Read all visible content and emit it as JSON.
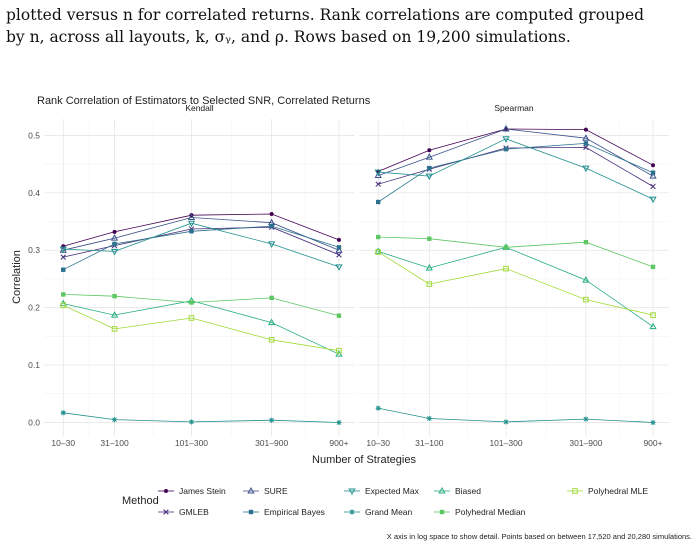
{
  "caption": {
    "line1": "plotted versus n for correlated returns. Rank correlations are computed grouped",
    "line2": "by n, across all layouts, k, σᵧ, and ρ. Rows based on 19,200 simulations."
  },
  "chart_data": {
    "type": "line",
    "title": "Rank Correlation of Estimators to Selected SNR, Correlated Returns",
    "xlabel": "Number of Strategies",
    "ylabel": "Correlation",
    "categories": [
      "10–30",
      "31–100",
      "101–300",
      "301–900",
      "900+"
    ],
    "x_positions": [
      0,
      0.8,
      2.0,
      3.25,
      4.3
    ],
    "ylim": [
      -0.02,
      0.525
    ],
    "yticks": [
      0.0,
      0.1,
      0.2,
      0.3,
      0.4,
      0.5
    ],
    "ytick_labels": [
      "0.0",
      "0.1",
      "0.2",
      "0.3",
      "0.4",
      "0.5"
    ],
    "legend_title": "Method",
    "legend_position": "bottom",
    "note": "X axis in log space to show detail. Points based on between 17,520 and 20,280 simulations.",
    "panels": [
      {
        "name": "Kendall",
        "series": [
          {
            "name": "James Stein",
            "color": "#440154",
            "marker": "dot",
            "values": [
              0.307,
              0.332,
              0.361,
              0.363,
              0.318
            ]
          },
          {
            "name": "GMLEB",
            "color": "#472d7b",
            "marker": "x",
            "values": [
              0.288,
              0.308,
              0.337,
              0.34,
              0.292
            ]
          },
          {
            "name": "SURE",
            "color": "#3b528b",
            "marker": "tri",
            "values": [
              0.3,
              0.321,
              0.357,
              0.348,
              0.3
            ]
          },
          {
            "name": "Empirical Bayes",
            "color": "#2c728e",
            "marker": "sq",
            "values": [
              0.266,
              0.311,
              0.333,
              0.342,
              0.305
            ]
          },
          {
            "name": "Expected Max",
            "color": "#21908d",
            "marker": "vtri",
            "values": [
              0.302,
              0.298,
              0.347,
              0.311,
              0.271
            ]
          },
          {
            "name": "Biased",
            "color": "#27ad81",
            "marker": "tri",
            "values": [
              0.207,
              0.187,
              0.212,
              0.174,
              0.119
            ]
          },
          {
            "name": "Grand Mean",
            "color": "#21908d",
            "marker": "star",
            "values": [
              0.017,
              0.005,
              0.001,
              0.004,
              0.0
            ]
          },
          {
            "name": "Polyhedral Median",
            "color": "#5dc863",
            "marker": "sq",
            "values": [
              0.223,
              0.22,
              0.209,
              0.217,
              0.186
            ]
          },
          {
            "name": "Polyhedral MLE",
            "color": "#a0da39",
            "marker": "sqo",
            "values": [
              0.204,
              0.163,
              0.182,
              0.144,
              0.125
            ]
          }
        ]
      },
      {
        "name": "Spearman",
        "series": [
          {
            "name": "James Stein",
            "color": "#440154",
            "marker": "dot",
            "values": [
              0.437,
              0.474,
              0.511,
              0.51,
              0.448
            ]
          },
          {
            "name": "GMLEB",
            "color": "#472d7b",
            "marker": "x",
            "values": [
              0.415,
              0.441,
              0.478,
              0.479,
              0.411
            ]
          },
          {
            "name": "SURE",
            "color": "#3b528b",
            "marker": "tri",
            "values": [
              0.43,
              0.462,
              0.511,
              0.495,
              0.429
            ]
          },
          {
            "name": "Empirical Bayes",
            "color": "#2c728e",
            "marker": "sq",
            "values": [
              0.384,
              0.443,
              0.476,
              0.486,
              0.435
            ]
          },
          {
            "name": "Expected Max",
            "color": "#21908d",
            "marker": "vtri",
            "values": [
              0.436,
              0.429,
              0.494,
              0.443,
              0.389
            ]
          },
          {
            "name": "Biased",
            "color": "#27ad81",
            "marker": "tri",
            "values": [
              0.298,
              0.269,
              0.305,
              0.248,
              0.167
            ]
          },
          {
            "name": "Grand Mean",
            "color": "#21908d",
            "marker": "star",
            "values": [
              0.025,
              0.007,
              0.001,
              0.006,
              0.0
            ]
          },
          {
            "name": "Polyhedral Median",
            "color": "#5dc863",
            "marker": "sq",
            "values": [
              0.323,
              0.32,
              0.305,
              0.314,
              0.271
            ]
          },
          {
            "name": "Polyhedral MLE",
            "color": "#a0da39",
            "marker": "sqo",
            "values": [
              0.297,
              0.241,
              0.268,
              0.214,
              0.187
            ]
          }
        ]
      }
    ],
    "legend_rows": [
      [
        "James Stein",
        "SURE",
        "Expected Max",
        "Biased",
        "Polyhedral MLE"
      ],
      [
        "GMLEB",
        "Empirical Bayes",
        "Grand Mean",
        "Polyhedral Median"
      ]
    ]
  }
}
